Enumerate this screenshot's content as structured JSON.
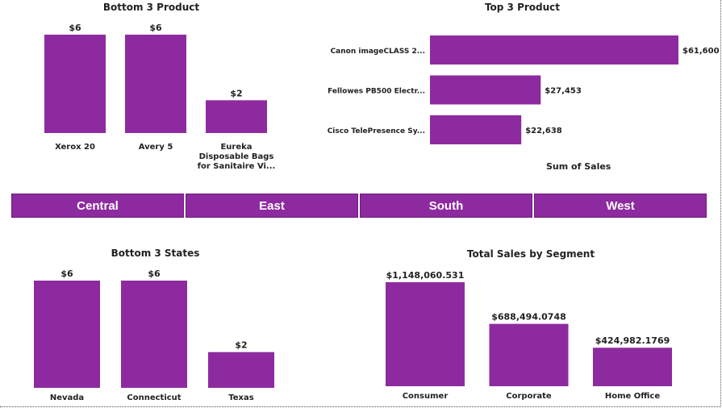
{
  "accent_color": "#8e2aa0",
  "slicer": {
    "items": [
      "Central",
      "East",
      "South",
      "West"
    ]
  },
  "chart_data": [
    {
      "id": "bottom3product",
      "type": "bar",
      "title": "Bottom 3 Product",
      "categories": [
        "Xerox 20",
        "Avery 5",
        "Eureka Disposable Bags for Sanitaire Vi..."
      ],
      "category_lines": [
        [
          "Xerox 20"
        ],
        [
          "Avery 5"
        ],
        [
          "Eureka",
          "Disposable Bags",
          "for Sanitaire Vi..."
        ]
      ],
      "values": [
        6,
        6,
        2
      ],
      "labels": [
        "$6",
        "$6",
        "$2"
      ]
    },
    {
      "id": "top3product",
      "type": "bar",
      "orientation": "horizontal",
      "title": "Top 3 Product",
      "categories": [
        "Canon imageCLASS 2...",
        "Fellowes PB500 Electr...",
        "Cisco TelePresence Sy..."
      ],
      "values": [
        61600,
        27453,
        22638
      ],
      "labels": [
        "$61,600",
        "$27,453",
        "$22,638"
      ],
      "xlabel": "Sum of Sales"
    },
    {
      "id": "bottom3states",
      "type": "bar",
      "title": "Bottom 3 States",
      "categories": [
        "Nevada",
        "Connecticut",
        "Texas"
      ],
      "values": [
        6,
        6,
        2
      ],
      "labels": [
        "$6",
        "$6",
        "$2"
      ]
    },
    {
      "id": "salesbysegment",
      "type": "bar",
      "title": "Total Sales by Segment",
      "categories": [
        "Consumer",
        "Corporate",
        "Home Office"
      ],
      "values": [
        1148060.531,
        688494.0748,
        424982.1769
      ],
      "labels": [
        "$1,148,060.531",
        "$688,494.0748",
        "$424,982.1769"
      ]
    }
  ]
}
